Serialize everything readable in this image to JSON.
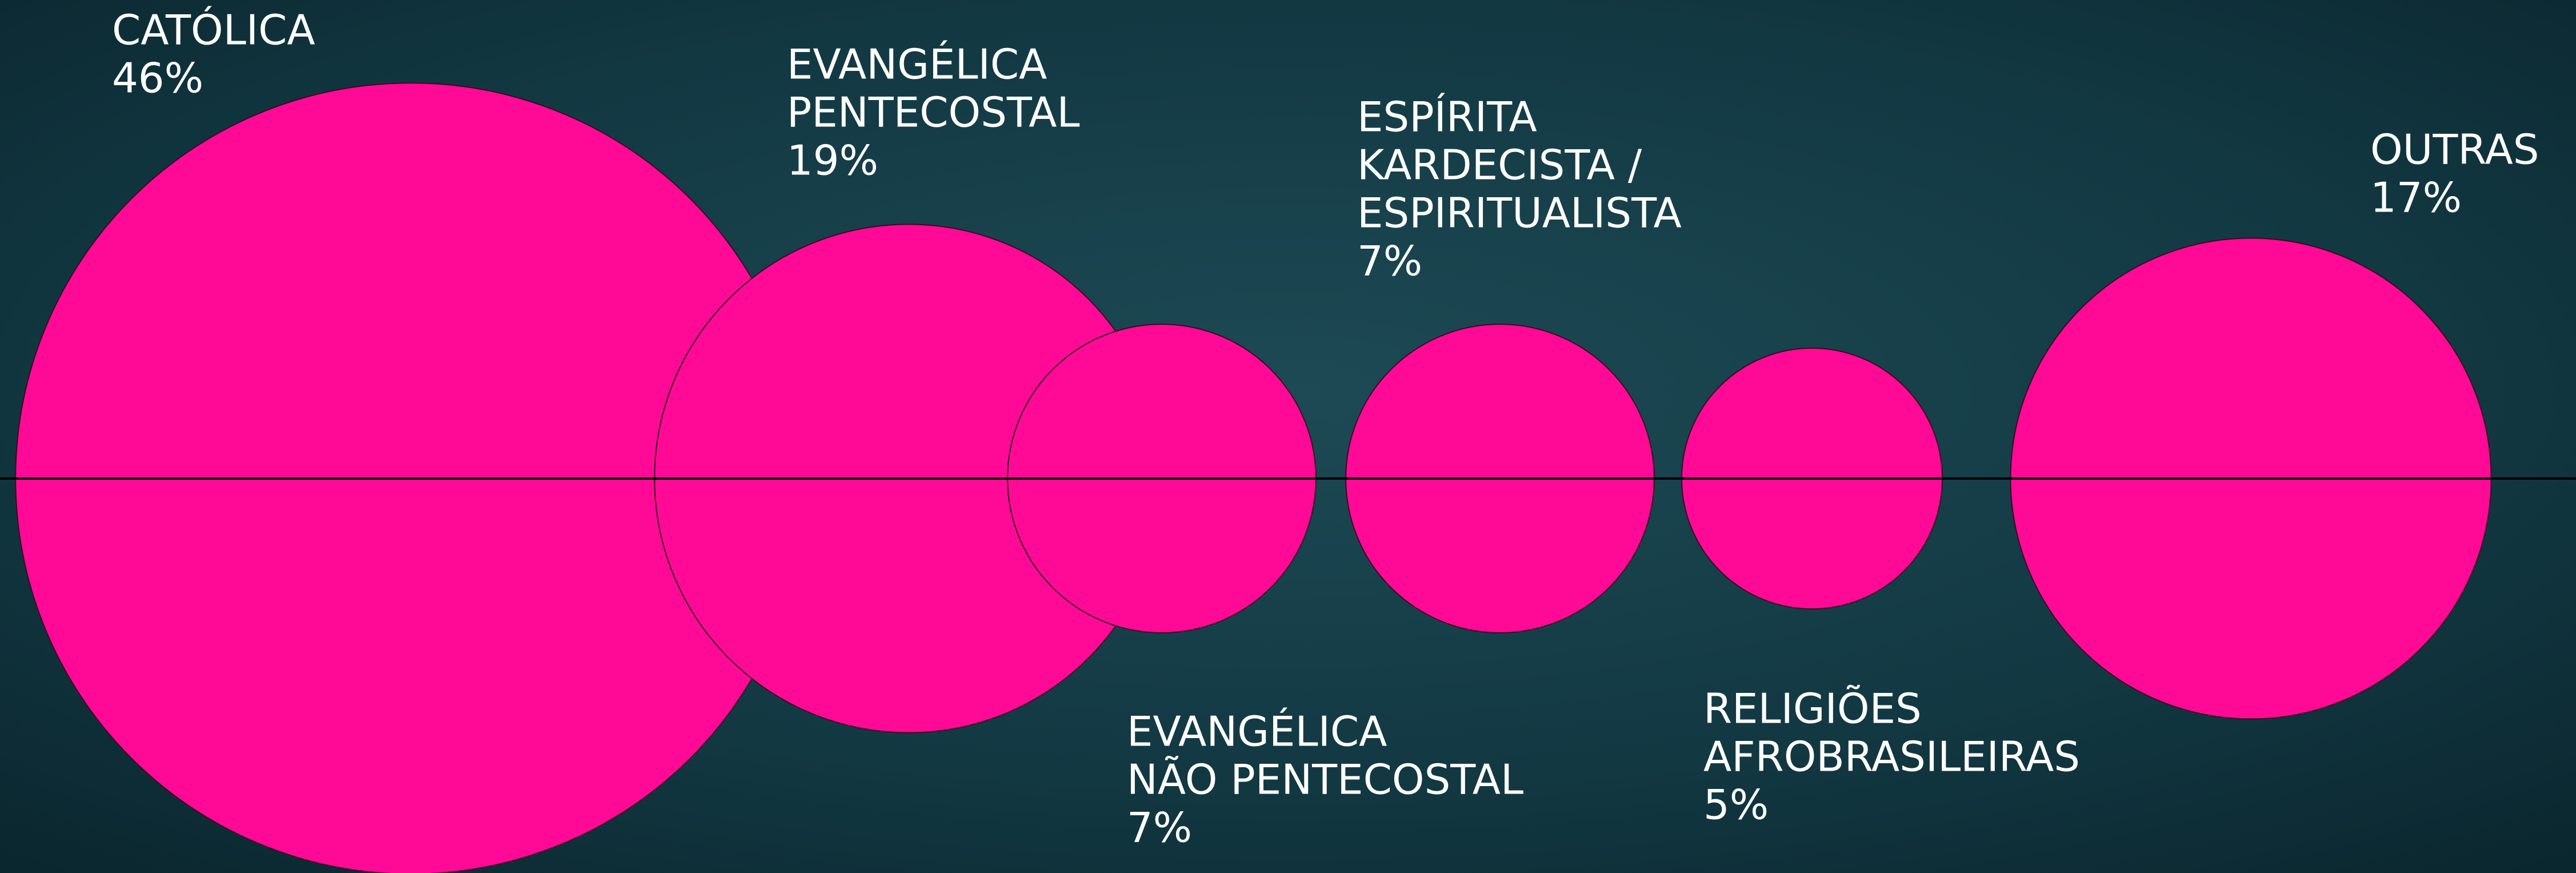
{
  "chart_data": {
    "type": "bubble",
    "categories": [
      [
        "CATÓLICA"
      ],
      [
        "EVANGÉLICA",
        "PENTECOSTAL"
      ],
      [
        "EVANGÉLICA",
        "NÃO PENTECOSTAL"
      ],
      [
        "ESPÍRITA",
        "KARDECISTA /",
        "ESPIRITUALISTA"
      ],
      [
        "RELIGIÕES",
        "AFROBRASILEIRAS"
      ],
      [
        "OUTRAS"
      ]
    ],
    "values": [
      46,
      19,
      7,
      7,
      5,
      17
    ],
    "value_labels": [
      "46%",
      "19%",
      "7%",
      "7%",
      "5%",
      "17%"
    ],
    "color": "#ff0a96"
  }
}
